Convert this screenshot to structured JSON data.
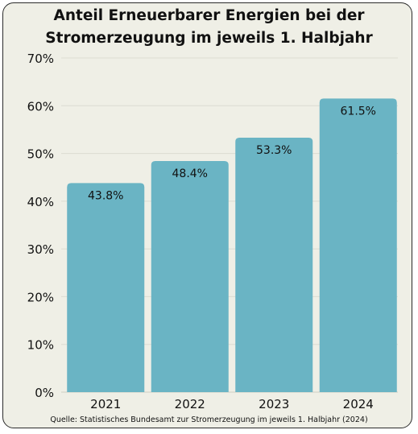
{
  "chart_data": {
    "type": "bar",
    "title_line1": "Anteil Erneuerbarer Energien bei der",
    "title_line2": "Stromerzeugung im jeweils 1. Halbjahr",
    "categories": [
      "2021",
      "2022",
      "2023",
      "2024"
    ],
    "values": [
      43.8,
      48.4,
      53.3,
      61.5
    ],
    "value_labels": [
      "43.8%",
      "48.4%",
      "53.3%",
      "61.5%"
    ],
    "ylim": [
      0,
      70
    ],
    "yticks": [
      0,
      10,
      20,
      30,
      40,
      50,
      60,
      70
    ],
    "ytick_labels": [
      "0%",
      "10%",
      "20%",
      "30%",
      "40%",
      "50%",
      "60%",
      "70%"
    ],
    "xlabel": "",
    "ylabel": "",
    "grid": true,
    "legend": "none",
    "bar_color": "#6ab4c4"
  },
  "source": "Quelle: Statistisches Bundesamt zur Stromerzeugung im jeweils 1. Halbjahr (2024)"
}
